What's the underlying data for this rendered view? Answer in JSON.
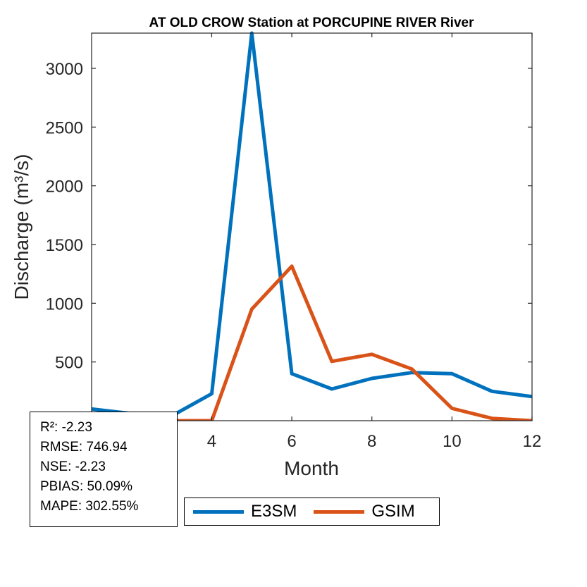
{
  "chart_data": {
    "type": "line",
    "title": "AT OLD CROW  Station at  PORCUPINE RIVER  River",
    "xlabel": "Month",
    "ylabel": "Discharge (m³/s)",
    "xlim": [
      1,
      12
    ],
    "ylim": [
      0,
      3300
    ],
    "xticks": [
      4,
      6,
      8,
      10,
      12
    ],
    "yticks": [
      500,
      1000,
      1500,
      2000,
      2500,
      3000
    ],
    "x": [
      1,
      2,
      3,
      4,
      5,
      6,
      7,
      8,
      9,
      10,
      11,
      12
    ],
    "series": [
      {
        "name": "E3SM",
        "color": "#0072BD",
        "values": [
          100,
          60,
          40,
          230,
          3300,
          400,
          270,
          360,
          410,
          400,
          250,
          205
        ]
      },
      {
        "name": "GSIM",
        "color": "#D95319",
        "values": [
          0,
          0,
          0,
          0,
          950,
          1315,
          505,
          565,
          440,
          105,
          20,
          0
        ]
      }
    ],
    "legend_position": "bottom"
  },
  "stats": {
    "r2": "R²: -2.23",
    "rmse": "RMSE: 746.94",
    "nse": "NSE: -2.23",
    "pbias": "PBIAS: 50.09%",
    "mape": "MAPE: 302.55%"
  }
}
